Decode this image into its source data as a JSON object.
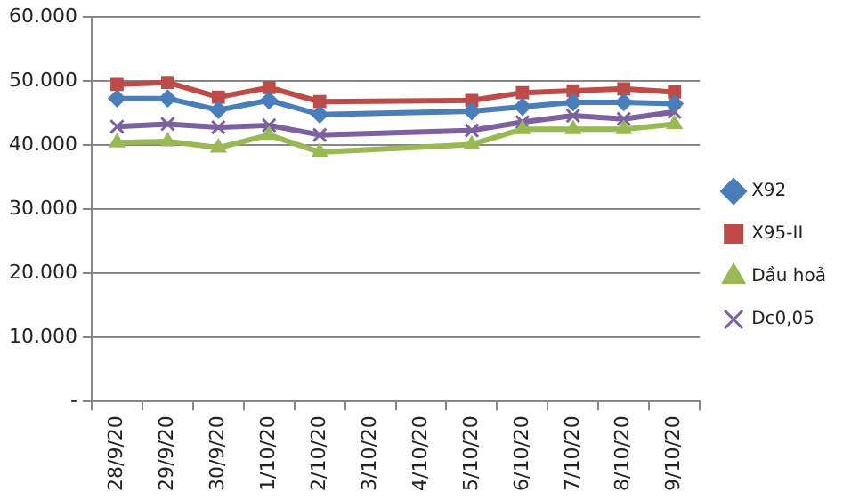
{
  "chart_data": {
    "type": "line",
    "categories": [
      "28/9/20",
      "29/9/20",
      "30/9/20",
      "1/10/20",
      "2/10/20",
      "3/10/20",
      "4/10/20",
      "5/10/20",
      "6/10/20",
      "7/10/20",
      "8/10/20",
      "9/10/20"
    ],
    "series": [
      {
        "name": "X92",
        "color": "#4a7ebb",
        "marker": "diamond",
        "values": [
          47300,
          47300,
          45500,
          47000,
          44800,
          null,
          null,
          45300,
          46000,
          46700,
          46700,
          46500
        ]
      },
      {
        "name": "X95-II",
        "color": "#be4b48",
        "marker": "square",
        "values": [
          49500,
          49800,
          47500,
          49000,
          46800,
          null,
          null,
          47000,
          48200,
          48500,
          48800,
          48300
        ]
      },
      {
        "name": "Dầu hoả",
        "color": "#98b954",
        "marker": "triangle",
        "values": [
          40400,
          40600,
          39600,
          41600,
          38900,
          null,
          null,
          40100,
          42500,
          42500,
          42500,
          43300
        ]
      },
      {
        "name": "Dc0,05",
        "color": "#7d60a0",
        "marker": "cross",
        "values": [
          42900,
          43300,
          42800,
          43100,
          41600,
          null,
          null,
          42300,
          43600,
          44600,
          44100,
          45200
        ]
      }
    ],
    "ylim": [
      0,
      60000
    ],
    "yticks": [
      {
        "value": 0,
        "label": "-"
      },
      {
        "value": 10000,
        "label": "10.000"
      },
      {
        "value": 20000,
        "label": "20.000"
      },
      {
        "value": 30000,
        "label": "30.000"
      },
      {
        "value": 40000,
        "label": "40.000"
      },
      {
        "value": 50000,
        "label": "50.000"
      },
      {
        "value": 60000,
        "label": "60.000"
      }
    ],
    "grid": "y",
    "legend": "right"
  }
}
